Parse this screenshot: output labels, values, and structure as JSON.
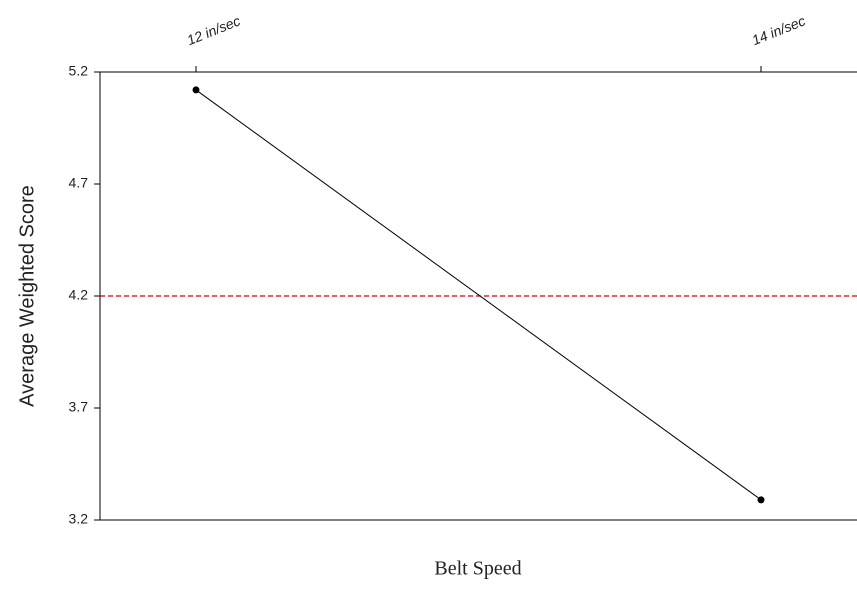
{
  "chart_data": {
    "type": "line",
    "y_label": "Average Weighted Score",
    "x_label": "Belt Speed",
    "categories": [
      "12 in/sec",
      "14 in/sec"
    ],
    "series": [
      {
        "name": "Belt Speed",
        "color": "#000000",
        "values": [
          5.12,
          3.29
        ]
      }
    ],
    "reference_line": {
      "value": 4.2,
      "color": "#cc0000"
    },
    "ylim": [
      3.2,
      5.2
    ],
    "yticks": [
      3.2,
      3.7,
      4.2,
      4.7,
      5.2
    ]
  }
}
